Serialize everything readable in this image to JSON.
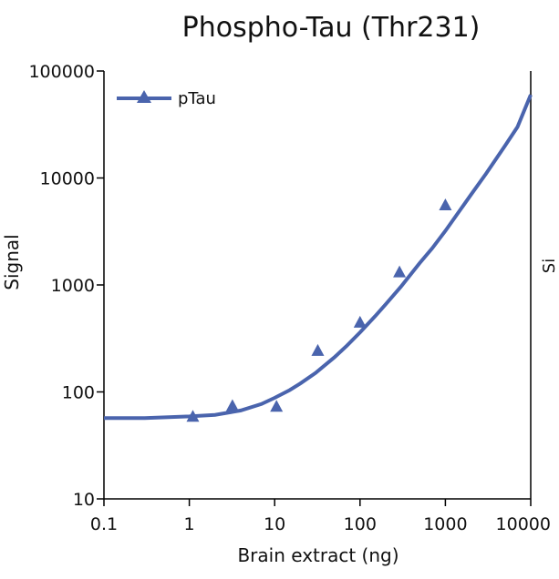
{
  "chart_data": {
    "type": "scatter",
    "title": "Phospho-Tau (Thr231)",
    "xlabel": "Brain extract (ng)",
    "ylabel": "Signal",
    "x_scale": "log",
    "y_scale": "log",
    "xlim": [
      0.1,
      10000
    ],
    "ylim": [
      10,
      100000
    ],
    "x_ticks": [
      "0.1",
      "1",
      "10",
      "100",
      "1000",
      "10000"
    ],
    "y_ticks": [
      "10",
      "100",
      "1000",
      "10000",
      "100000"
    ],
    "grid": false,
    "legend_position": "top-left",
    "series": [
      {
        "name": "pTau",
        "color": "#4a64ad",
        "marker": "triangle",
        "points": [
          {
            "x": 1.1,
            "y": 58
          },
          {
            "x": 3.2,
            "y": 73
          },
          {
            "x": 10.5,
            "y": 72
          },
          {
            "x": 32,
            "y": 240
          },
          {
            "x": 100,
            "y": 440
          },
          {
            "x": 290,
            "y": 1300
          },
          {
            "x": 1000,
            "y": 5500
          }
        ],
        "fit": {
          "description": "sigmoidal fit",
          "x": [
            0.1,
            0.3,
            1,
            2,
            4,
            7,
            10,
            15,
            20,
            30,
            50,
            70,
            100,
            150,
            200,
            300,
            500,
            700,
            1000,
            2000,
            3000,
            5000,
            7000,
            10000
          ],
          "y": [
            57,
            57,
            59,
            61,
            67,
            77,
            88,
            104,
            120,
            150,
            210,
            270,
            360,
            510,
            660,
            960,
            1600,
            2200,
            3200,
            7000,
            11000,
            20000,
            30000,
            60000
          ]
        }
      }
    ]
  },
  "clipped_neighbor": {
    "text": "Si"
  }
}
